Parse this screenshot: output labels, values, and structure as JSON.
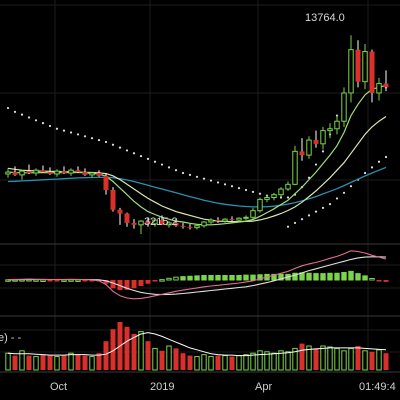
{
  "chart_data": {
    "type": "candlestick",
    "theme": {
      "background": "#000000",
      "grid": "#1c1c1c",
      "up": "#7bd44a",
      "down": "#d9302c",
      "white": "#ffffff"
    },
    "high_label": "13764.0",
    "low_label": "3215.2",
    "time_label": "01:49:4",
    "x_ticks": [
      "Oct",
      "2019",
      "Apr"
    ],
    "volume_legend": "e)  - -",
    "price_range": [
      3000,
      15000
    ],
    "candles": [
      {
        "o": 6400,
        "h": 6700,
        "l": 6200,
        "c": 6500
      },
      {
        "o": 6500,
        "h": 6800,
        "l": 6300,
        "c": 6350
      },
      {
        "o": 6350,
        "h": 6600,
        "l": 6100,
        "c": 6550
      },
      {
        "o": 6550,
        "h": 6900,
        "l": 6400,
        "c": 6450
      },
      {
        "o": 6450,
        "h": 6700,
        "l": 6300,
        "c": 6600
      },
      {
        "o": 6600,
        "h": 6850,
        "l": 6450,
        "c": 6500
      },
      {
        "o": 6500,
        "h": 6750,
        "l": 6350,
        "c": 6400
      },
      {
        "o": 6400,
        "h": 6650,
        "l": 6250,
        "c": 6550
      },
      {
        "o": 6550,
        "h": 6800,
        "l": 6400,
        "c": 6450
      },
      {
        "o": 6450,
        "h": 6700,
        "l": 6300,
        "c": 6600
      },
      {
        "o": 6600,
        "h": 6800,
        "l": 6450,
        "c": 6500
      },
      {
        "o": 6500,
        "h": 6700,
        "l": 6300,
        "c": 6350
      },
      {
        "o": 6350,
        "h": 6500,
        "l": 6200,
        "c": 6450
      },
      {
        "o": 6450,
        "h": 6600,
        "l": 6250,
        "c": 6300
      },
      {
        "o": 6300,
        "h": 6450,
        "l": 5300,
        "c": 5550
      },
      {
        "o": 5550,
        "h": 5700,
        "l": 4400,
        "c": 4500
      },
      {
        "o": 4500,
        "h": 4600,
        "l": 3700,
        "c": 4300
      },
      {
        "o": 4300,
        "h": 4350,
        "l": 3600,
        "c": 3800
      },
      {
        "o": 3800,
        "h": 4000,
        "l": 3500,
        "c": 3700
      },
      {
        "o": 3700,
        "h": 3950,
        "l": 3215,
        "c": 3900
      },
      {
        "o": 3900,
        "h": 4100,
        "l": 3600,
        "c": 3750
      },
      {
        "o": 3750,
        "h": 4050,
        "l": 3600,
        "c": 3950
      },
      {
        "o": 3950,
        "h": 4200,
        "l": 3700,
        "c": 3700
      },
      {
        "o": 3700,
        "h": 3900,
        "l": 3550,
        "c": 3800
      },
      {
        "o": 3800,
        "h": 4000,
        "l": 3600,
        "c": 3650
      },
      {
        "o": 3650,
        "h": 3800,
        "l": 3500,
        "c": 3600
      },
      {
        "o": 3600,
        "h": 3750,
        "l": 3450,
        "c": 3550
      },
      {
        "o": 3550,
        "h": 3750,
        "l": 3450,
        "c": 3650
      },
      {
        "o": 3650,
        "h": 3900,
        "l": 3550,
        "c": 3850
      },
      {
        "o": 3850,
        "h": 4050,
        "l": 3750,
        "c": 3950
      },
      {
        "o": 3950,
        "h": 4100,
        "l": 3800,
        "c": 3900
      },
      {
        "o": 3900,
        "h": 4050,
        "l": 3800,
        "c": 4000
      },
      {
        "o": 4000,
        "h": 4150,
        "l": 3900,
        "c": 3950
      },
      {
        "o": 3950,
        "h": 4100,
        "l": 3850,
        "c": 4050
      },
      {
        "o": 4050,
        "h": 4200,
        "l": 3950,
        "c": 4100
      },
      {
        "o": 4100,
        "h": 4600,
        "l": 4000,
        "c": 4450
      },
      {
        "o": 4450,
        "h": 5150,
        "l": 4350,
        "c": 5050
      },
      {
        "o": 5050,
        "h": 5300,
        "l": 4900,
        "c": 5150
      },
      {
        "o": 5150,
        "h": 5400,
        "l": 5000,
        "c": 5300
      },
      {
        "o": 5300,
        "h": 5700,
        "l": 5200,
        "c": 5600
      },
      {
        "o": 5600,
        "h": 6000,
        "l": 5500,
        "c": 5850
      },
      {
        "o": 5850,
        "h": 7900,
        "l": 5800,
        "c": 7600
      },
      {
        "o": 7600,
        "h": 8300,
        "l": 7100,
        "c": 7400
      },
      {
        "o": 7400,
        "h": 8400,
        "l": 7200,
        "c": 8200
      },
      {
        "o": 8200,
        "h": 8700,
        "l": 7800,
        "c": 8000
      },
      {
        "o": 8000,
        "h": 8900,
        "l": 7700,
        "c": 8700
      },
      {
        "o": 8700,
        "h": 9100,
        "l": 8300,
        "c": 8800
      },
      {
        "o": 8800,
        "h": 9500,
        "l": 8500,
        "c": 9200
      },
      {
        "o": 9200,
        "h": 11000,
        "l": 8900,
        "c": 10700
      },
      {
        "o": 10700,
        "h": 13764,
        "l": 10200,
        "c": 13000
      },
      {
        "o": 13000,
        "h": 13500,
        "l": 11000,
        "c": 11300
      },
      {
        "o": 11300,
        "h": 13300,
        "l": 10900,
        "c": 12900
      },
      {
        "o": 12900,
        "h": 13000,
        "l": 10200,
        "c": 10700
      },
      {
        "o": 10700,
        "h": 11500,
        "l": 10300,
        "c": 11200
      },
      {
        "o": 11200,
        "h": 11900,
        "l": 10800,
        "c": 11000
      }
    ],
    "upper_band": [
      9900,
      9700,
      9550,
      9400,
      9250,
      9100,
      8950,
      8800,
      8700,
      8600,
      8500,
      8400,
      8300,
      8200,
      8100,
      7950,
      7800,
      7650,
      7500,
      7350,
      7200,
      7050,
      6900,
      6750,
      6600,
      6450,
      6350,
      6250,
      6150,
      6050,
      5950,
      5850,
      5750,
      5650,
      5550,
      5450,
      5350,
      5250,
      5200,
      5150,
      5150,
      5300,
      5700,
      6200,
      6900,
      7600,
      8500,
      9500,
      10400,
      11200,
      11700,
      11800,
      11500,
      11150,
      11000
    ],
    "lower_band": [
      null,
      null,
      null,
      null,
      null,
      null,
      null,
      null,
      null,
      null,
      null,
      null,
      null,
      null,
      null,
      null,
      null,
      null,
      null,
      null,
      null,
      null,
      null,
      null,
      null,
      null,
      null,
      null,
      null,
      null,
      null,
      null,
      null,
      null,
      null,
      null,
      null,
      null,
      null,
      null,
      3600,
      3800,
      4000,
      4200,
      4400,
      4600,
      4800,
      5100,
      5400,
      5750,
      6100,
      6450,
      6750,
      7050,
      7300
    ],
    "ma_fast": [
      6500,
      6480,
      6460,
      6460,
      6470,
      6480,
      6470,
      6460,
      6470,
      6480,
      6480,
      6460,
      6430,
      6400,
      6280,
      6000,
      5650,
      5300,
      4950,
      4650,
      4400,
      4250,
      4100,
      4000,
      3900,
      3850,
      3780,
      3720,
      3700,
      3700,
      3720,
      3760,
      3800,
      3850,
      3900,
      3980,
      4150,
      4350,
      4550,
      4780,
      5000,
      5350,
      5700,
      6100,
      6500,
      6950,
      7400,
      7900,
      8600,
      9500,
      10100,
      10600,
      10900,
      11000,
      11100
    ],
    "ma_mid": [
      6700,
      6650,
      6600,
      6580,
      6560,
      6550,
      6540,
      6530,
      6520,
      6510,
      6500,
      6490,
      6480,
      6460,
      6420,
      6300,
      6100,
      5850,
      5600,
      5350,
      5100,
      4900,
      4700,
      4550,
      4400,
      4300,
      4200,
      4100,
      4000,
      3950,
      3900,
      3880,
      3870,
      3870,
      3880,
      3900,
      3960,
      4050,
      4170,
      4300,
      4460,
      4650,
      4900,
      5200,
      5500,
      5850,
      6200,
      6600,
      7000,
      7500,
      8000,
      8500,
      8900,
      9200,
      9450
    ],
    "ma_slow": [
      6000,
      6010,
      6030,
      6050,
      6070,
      6090,
      6110,
      6130,
      6150,
      6170,
      6190,
      6200,
      6210,
      6220,
      6220,
      6200,
      6150,
      6080,
      6000,
      5900,
      5800,
      5700,
      5600,
      5500,
      5400,
      5300,
      5200,
      5100,
      5000,
      4920,
      4850,
      4790,
      4740,
      4700,
      4670,
      4650,
      4650,
      4660,
      4690,
      4740,
      4800,
      4880,
      4970,
      5080,
      5200,
      5340,
      5480,
      5620,
      5780,
      5950,
      6120,
      6290,
      6450,
      6600,
      6750
    ],
    "macd": {
      "range": [
        -800,
        800
      ],
      "dif": [
        10,
        15,
        20,
        25,
        20,
        15,
        10,
        12,
        15,
        18,
        15,
        12,
        5,
        -20,
        -120,
        -300,
        -420,
        -480,
        -500,
        -490,
        -460,
        -420,
        -380,
        -340,
        -300,
        -270,
        -240,
        -210,
        -180,
        -160,
        -140,
        -120,
        -100,
        -80,
        -50,
        -20,
        30,
        80,
        130,
        180,
        230,
        310,
        380,
        430,
        470,
        520,
        580,
        630,
        700,
        780,
        760,
        720,
        660,
        610,
        560
      ],
      "dea": [
        5,
        7,
        10,
        12,
        14,
        15,
        14,
        13,
        13,
        14,
        14,
        13,
        11,
        5,
        -20,
        -80,
        -150,
        -220,
        -280,
        -330,
        -360,
        -380,
        -390,
        -385,
        -375,
        -360,
        -340,
        -320,
        -300,
        -280,
        -260,
        -240,
        -220,
        -200,
        -180,
        -150,
        -110,
        -70,
        -20,
        30,
        80,
        130,
        190,
        250,
        300,
        350,
        400,
        450,
        500,
        550,
        590,
        610,
        620,
        620,
        610
      ],
      "hist": [
        5,
        8,
        10,
        13,
        6,
        0,
        -4,
        -1,
        2,
        4,
        1,
        -1,
        -6,
        -25,
        -100,
        -220,
        -270,
        -260,
        -220,
        -160,
        -100,
        -40,
        10,
        45,
        75,
        90,
        100,
        110,
        120,
        120,
        120,
        120,
        120,
        120,
        130,
        130,
        140,
        150,
        150,
        150,
        150,
        180,
        190,
        180,
        170,
        170,
        180,
        180,
        200,
        230,
        170,
        110,
        40,
        -10,
        -50
      ]
    },
    "volume": {
      "max": 100,
      "values": [
        35,
        30,
        40,
        30,
        28,
        32,
        30,
        28,
        30,
        35,
        32,
        30,
        28,
        35,
        60,
        85,
        100,
        90,
        75,
        80,
        60,
        45,
        40,
        50,
        45,
        35,
        30,
        28,
        32,
        28,
        30,
        30,
        28,
        30,
        32,
        35,
        40,
        38,
        35,
        40,
        38,
        45,
        55,
        50,
        45,
        50,
        48,
        45,
        40,
        45,
        50,
        40,
        38,
        42,
        35
      ],
      "ma_line": [
        35,
        34,
        34,
        34,
        33,
        32,
        31,
        31,
        31,
        32,
        32,
        32,
        31,
        31,
        33,
        40,
        50,
        60,
        68,
        75,
        78,
        75,
        70,
        64,
        58,
        52,
        46,
        42,
        38,
        34,
        32,
        31,
        31,
        30,
        30,
        31,
        32,
        33,
        34,
        35,
        36,
        38,
        41,
        43,
        44,
        45,
        46,
        46,
        46,
        46,
        46,
        45,
        44,
        43,
        42
      ]
    }
  }
}
